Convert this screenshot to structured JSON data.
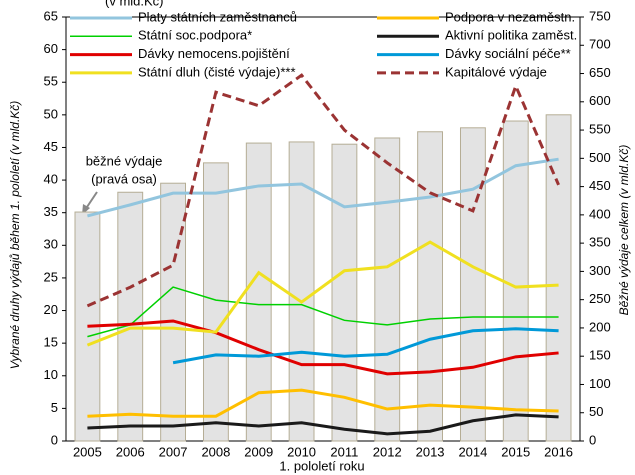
{
  "chart_data": {
    "type": "bar-line",
    "title": "(v mld.Kč)",
    "x_label": "1. pololetí roku",
    "y_label": "Vybrané druhy výdajů během 1. pololetí (v mld.Kč)",
    "y2_label": "Běžné výdaje celkem (v mld.Kč)",
    "annotation": [
      "běžné výdaje",
      "(pravá osa)"
    ],
    "categories": [
      "2005",
      "2006",
      "2007",
      "2008",
      "2009",
      "2010",
      "2011",
      "2012",
      "2013",
      "2014",
      "2015",
      "2016"
    ],
    "ylim": [
      0,
      65
    ],
    "yticks": [
      0,
      5,
      10,
      15,
      20,
      25,
      30,
      35,
      40,
      45,
      50,
      55,
      60,
      65
    ],
    "y2lim": [
      0,
      750
    ],
    "y2ticks": [
      0,
      50,
      100,
      150,
      200,
      250,
      300,
      350,
      400,
      450,
      500,
      550,
      600,
      650,
      700,
      750
    ],
    "bars": {
      "axis": "y2",
      "color": "#e3e3e3",
      "values": [
        405,
        440,
        456,
        492,
        527,
        529,
        525,
        536,
        547,
        554,
        566,
        577
      ]
    },
    "series": [
      {
        "name": "Platy státních zaměstnanců",
        "color": "#92c5de",
        "values": [
          34.5,
          36.2,
          38,
          38,
          39.1,
          39.4,
          35.9,
          36.6,
          37.4,
          38.6,
          42.2,
          43.2
        ]
      },
      {
        "name": "Podpora v nezaměstn.",
        "color": "#ffbf00",
        "values": [
          3.8,
          4.1,
          3.8,
          3.8,
          7.4,
          7.8,
          6.7,
          4.9,
          5.5,
          5.2,
          4.8,
          4.6
        ]
      },
      {
        "name": "Státní soc.podpora*",
        "color": "#00d000",
        "values": [
          16,
          17.8,
          23.6,
          21.6,
          20.9,
          20.9,
          18.5,
          17.8,
          18.7,
          19,
          19,
          19
        ]
      },
      {
        "name": "Aktivní politika zaměst.",
        "color": "#1a1a1a",
        "values": [
          2,
          2.3,
          2.3,
          2.8,
          2.3,
          2.8,
          1.8,
          1.1,
          1.5,
          3.1,
          4,
          3.7
        ]
      },
      {
        "name": "Dávky nemocens.pojištění",
        "color": "#e00000",
        "values": [
          17.6,
          17.9,
          18.4,
          16.6,
          14,
          11.7,
          11.7,
          10.3,
          10.6,
          11.3,
          12.9,
          13.5
        ]
      },
      {
        "name": "Dávky sociální péče**",
        "color": "#0099d8",
        "values": [
          null,
          null,
          12,
          13.2,
          13,
          13.6,
          13,
          13.3,
          15.6,
          16.9,
          17.2,
          16.9
        ]
      },
      {
        "name": "Státní dluh (čisté výdaje)***",
        "color": "#f0e020",
        "values": [
          14.7,
          17.3,
          17.3,
          16.7,
          25.8,
          21.3,
          26.1,
          26.7,
          30.5,
          26.7,
          23.6,
          23.9
        ]
      },
      {
        "name": "Kapitálové výdaje",
        "color": "#9b3333",
        "axis": "y2",
        "dashed": true,
        "values": [
          239,
          272,
          311,
          617,
          593,
          647,
          550,
          492,
          439,
          407,
          628,
          453
        ]
      }
    ]
  }
}
